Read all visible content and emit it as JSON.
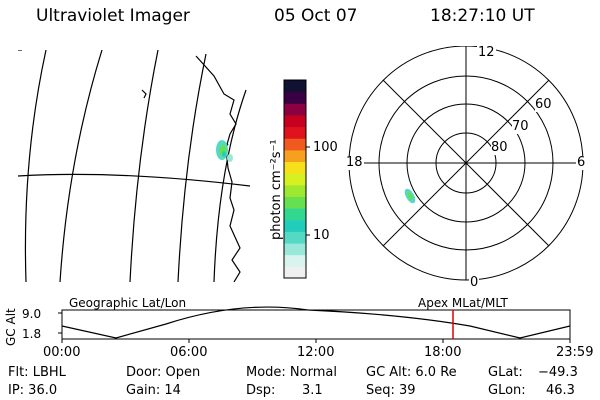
{
  "header": {
    "title": "Ultraviolet Imager",
    "date": "05 Oct 07",
    "time": "18:27:10 UT"
  },
  "colorbar": {
    "label": "photon cm⁻²s⁻¹",
    "ticks": [
      {
        "label": "100"
      },
      {
        "label": "10"
      }
    ],
    "colors": [
      "#f0f0f0",
      "#d9f4ee",
      "#99e8da",
      "#55d8c4",
      "#22cdbb",
      "#33d890",
      "#66e050",
      "#9ee830",
      "#d7f020",
      "#f6e01c",
      "#f7a020",
      "#f05a1e",
      "#e0121e",
      "#c80020",
      "#8a0040",
      "#3a0044",
      "#111133"
    ]
  },
  "polar": {
    "labels": {
      "top": "12",
      "bottom": "0",
      "left": "18",
      "right": "6"
    },
    "lat_labels": [
      "60",
      "70",
      "80"
    ]
  },
  "timeline": {
    "left_caption": "Geographic Lat/Lon",
    "right_caption": "Apex MLat/MLT",
    "y_label": "GC Alt",
    "y_ticks": [
      "9.0",
      "1.8"
    ],
    "x_ticks": [
      "00:00",
      "06:00",
      "12:00",
      "18:00",
      "23:59"
    ],
    "current_time": "18:27",
    "marker_color": "#dd0000"
  },
  "footer": {
    "row1": {
      "flt": "Flt: LBHL",
      "door": "Door: Open",
      "mode": "Mode: Normal",
      "gcalt": "GC Alt: 6.0 Re",
      "glat_label": "GLat:",
      "glat_value": "−49.3"
    },
    "row2": {
      "ip": "IP: 36.0",
      "gain": "Gain: 14",
      "dsp_label": "Dsp:",
      "dsp_value": "3.1",
      "seq": "Seq: 39",
      "glon_label": "GLon:",
      "glon_value": "46.3"
    }
  }
}
